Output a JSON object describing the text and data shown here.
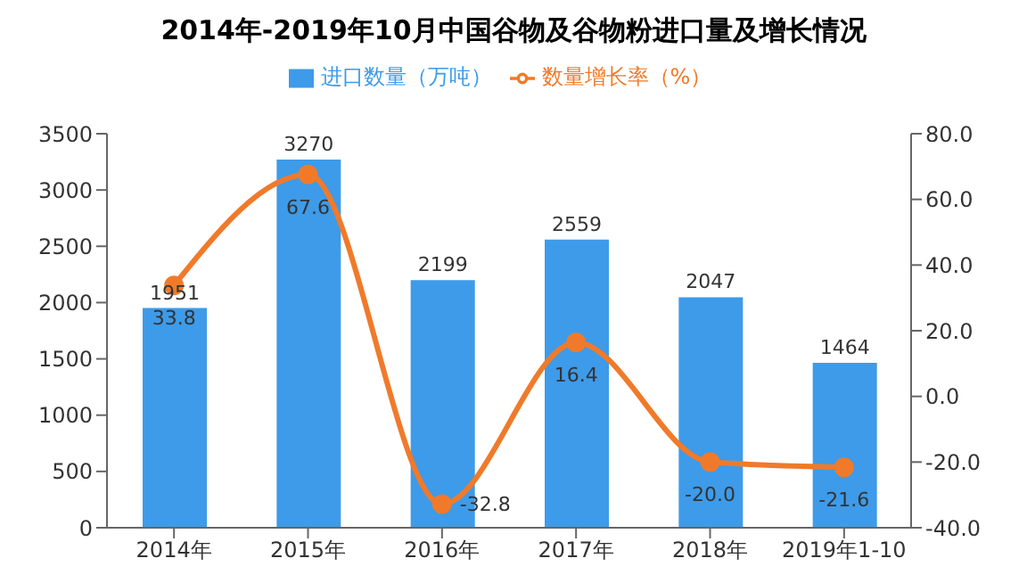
{
  "chart_data": {
    "type": "bar",
    "title": "2014年-2019年10月中国谷物及谷物粉进口量及增长情况",
    "categories": [
      "2014年",
      "2015年",
      "2016年",
      "2017年",
      "2018年",
      "2019年1-10"
    ],
    "series": [
      {
        "name": "进口数量（万吨）",
        "color": "#3d9be9",
        "values": [
          1951,
          3270,
          2199,
          2559,
          2047,
          1464
        ],
        "value_labels": [
          "1951",
          "3270",
          "2199",
          "2559",
          "2047",
          "1464"
        ]
      },
      {
        "name": "数量增长率（%）",
        "type": "line",
        "axis": "y2",
        "color": "#f07a2a",
        "values": [
          33.8,
          67.6,
          -32.8,
          16.4,
          -20.0,
          -21.6
        ],
        "value_labels": [
          "33.8",
          "67.6",
          "-32.8",
          "16.4",
          "-20.0",
          "-21.6"
        ]
      }
    ],
    "ylim": [
      0,
      3500
    ],
    "yticks": [
      0,
      500,
      1000,
      1500,
      2000,
      2500,
      3000,
      3500
    ],
    "y2lim": [
      -40,
      80
    ],
    "y2ticks": [
      {
        "value": -40,
        "label": "-40.0"
      },
      {
        "value": -20,
        "label": "-20.0"
      },
      {
        "value": 0,
        "label": "0.0"
      },
      {
        "value": 20,
        "label": "20.0"
      },
      {
        "value": 40,
        "label": "40.0"
      },
      {
        "value": 60,
        "label": "60.0"
      },
      {
        "value": 80,
        "label": "80.0"
      }
    ],
    "legend": "top",
    "marker": "circle"
  }
}
